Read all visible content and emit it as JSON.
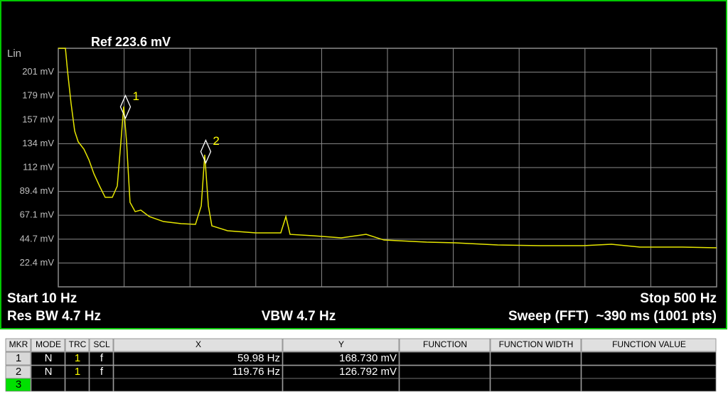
{
  "chart_data": {
    "type": "line",
    "title": "Ref 223.6 mV",
    "y_scale_label": "Lin",
    "start_label": "Start 10 Hz",
    "stop_label": "Stop 500 Hz",
    "res_bw": "Res BW 4.7 Hz",
    "vbw": "VBW 4.7 Hz",
    "sweep": "Sweep (FFT)  ~390 ms (1001 pts)",
    "xlim": [
      10,
      500
    ],
    "ylim": [
      0,
      223.6
    ],
    "yticks": [
      {
        "value": 201.2,
        "label": "201 mV"
      },
      {
        "value": 178.9,
        "label": "179 mV"
      },
      {
        "value": 156.5,
        "label": "157 mV"
      },
      {
        "value": 134.2,
        "label": "134 mV"
      },
      {
        "value": 111.8,
        "label": "112 mV"
      },
      {
        "value": 89.4,
        "label": "89.4 mV"
      },
      {
        "value": 67.1,
        "label": "67.1 mV"
      },
      {
        "value": 44.7,
        "label": "44.7 mV"
      },
      {
        "value": 22.4,
        "label": "22.4 mV"
      }
    ],
    "grid": true,
    "color": "#e6e600",
    "x": [
      10,
      15.3,
      16.9,
      19.5,
      22.2,
      24.8,
      29.1,
      32.8,
      36.5,
      40.7,
      44.9,
      50.2,
      53.9,
      56.6,
      58.7,
      60.8,
      63.4,
      67.2,
      71.4,
      77.7,
      88.3,
      101.5,
      112.1,
      116.4,
      119.0,
      121.7,
      124.3,
      136.0,
      157.1,
      175.6,
      179.4,
      182.5,
      199.5,
      220.6,
      239.1,
      252.4,
      284.1,
      305.3,
      337.0,
      368.8,
      400.6,
      421.7,
      442.9,
      474.6,
      500
    ],
    "values": [
      223.6,
      223.6,
      202,
      172,
      146,
      136,
      129,
      119,
      106,
      94.5,
      83.9,
      83.9,
      94.5,
      136,
      169,
      136,
      79.2,
      70.5,
      71.9,
      65.9,
      61.2,
      59.2,
      58.6,
      75.9,
      123.8,
      75.9,
      57.2,
      52.6,
      50.6,
      50.6,
      65.9,
      49.2,
      47.9,
      45.9,
      49.2,
      43.9,
      41.9,
      41.3,
      39.3,
      38.6,
      38.6,
      39.9,
      37.3,
      37.3,
      36.6
    ],
    "markers": [
      {
        "label": "1",
        "x": 59.98,
        "y": 168.73
      },
      {
        "label": "2",
        "x": 119.76,
        "y": 126.792
      }
    ]
  },
  "marker_table": {
    "headers": [
      "MKR",
      "MODE",
      "TRC",
      "SCL",
      "X",
      "Y",
      "FUNCTION",
      "FUNCTION WIDTH",
      "FUNCTION VALUE"
    ],
    "rows": [
      [
        "1",
        "N",
        "1",
        "f",
        "59.98 Hz",
        "168.730 mV"
      ],
      [
        "2",
        "N",
        "1",
        "f",
        "119.76 Hz",
        "126.792 mV"
      ],
      [
        "3"
      ]
    ]
  }
}
